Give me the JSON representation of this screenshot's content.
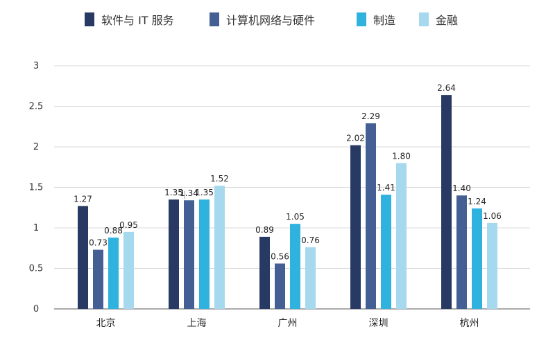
{
  "chart_data": {
    "type": "bar",
    "categories": [
      "北京",
      "上海",
      "广州",
      "深圳",
      "杭州"
    ],
    "series": [
      {
        "name": "软件与 IT 服务",
        "color": "#283a63",
        "values": [
          1.27,
          1.35,
          0.89,
          2.02,
          2.64
        ],
        "labels": [
          "1.27",
          "1.35",
          "0.89",
          "2.02",
          "2.64"
        ]
      },
      {
        "name": "计算机网络与硬件",
        "color": "#445f94",
        "values": [
          0.73,
          1.34,
          0.56,
          2.29,
          1.4
        ],
        "labels": [
          "0.73",
          "1.34",
          "0.56",
          "2.29",
          "1.40"
        ]
      },
      {
        "name": "制造",
        "color": "#2fb3de",
        "values": [
          0.88,
          1.35,
          1.05,
          1.41,
          1.24
        ],
        "labels": [
          "0.88",
          "1.35",
          "1.05",
          "1.41",
          "1.24"
        ]
      },
      {
        "name": "金融",
        "color": "#a6d9ee",
        "values": [
          0.95,
          1.52,
          0.76,
          1.8,
          1.06
        ],
        "labels": [
          "0.95",
          "1.52",
          "0.76",
          "1.80",
          "1.06"
        ]
      }
    ],
    "yticks": [
      "0",
      "0.5",
      "1",
      "1.5",
      "2",
      "2.5",
      "3"
    ],
    "ylim": [
      0,
      3
    ],
    "grid": true,
    "legend_position": "top"
  }
}
